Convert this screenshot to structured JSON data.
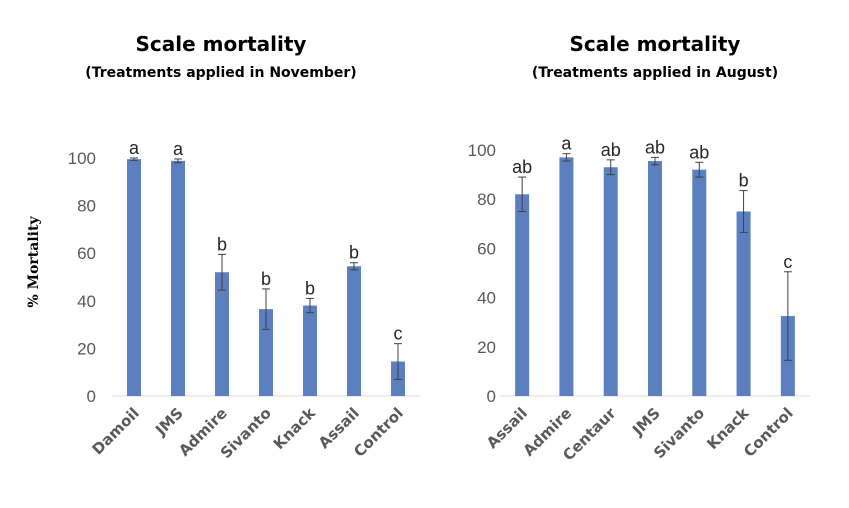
{
  "chart_data": [
    {
      "type": "bar",
      "title": "Scale mortality",
      "subtitle": "(Treatments applied in November)",
      "ylabel": "% Mortality",
      "xlabel": "",
      "ylim": [
        0,
        100
      ],
      "yticks": [
        0,
        20,
        40,
        60,
        80,
        100
      ],
      "categories": [
        "Damoil",
        "JMS",
        "Admire",
        "Sivanto",
        "Knack",
        "Assail",
        "Control"
      ],
      "values": [
        99.5,
        98.8,
        52,
        36.5,
        38,
        54.5,
        14.5
      ],
      "errors": [
        0.5,
        0.8,
        7.5,
        8.5,
        3,
        1.5,
        7.5
      ],
      "letters": [
        "a",
        "a",
        "b",
        "b",
        "b",
        "b",
        "c"
      ],
      "color": "#5b7fbf"
    },
    {
      "type": "bar",
      "title": "Scale mortality",
      "subtitle": "(Treatments applied in August)",
      "ylabel": "",
      "xlabel": "",
      "ylim": [
        0,
        100
      ],
      "yticks": [
        0,
        20,
        40,
        60,
        80,
        100
      ],
      "categories": [
        "Assail",
        "Admire",
        "Centaur",
        "JMS",
        "Sivanto",
        "Knack",
        "Control"
      ],
      "values": [
        82,
        97,
        93,
        95.5,
        92,
        75,
        32.5
      ],
      "errors": [
        7,
        1.5,
        3,
        1.5,
        3,
        8.5,
        18
      ],
      "letters": [
        "ab",
        "a",
        "ab",
        "ab",
        "ab",
        "b",
        "c"
      ],
      "color": "#5b7fbf"
    }
  ]
}
